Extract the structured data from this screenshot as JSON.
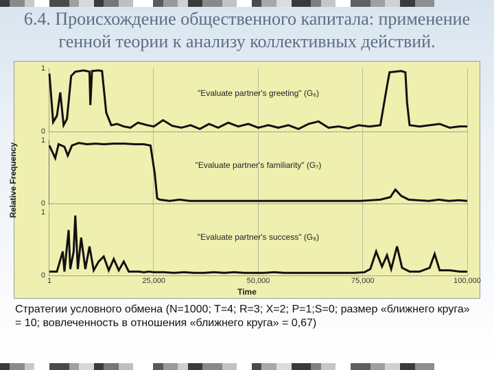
{
  "title": "6.4. Происхождение общественного капитала: применение генной теории к анализу коллективных действий.",
  "title_color": "#5b6e82",
  "stripes": {
    "colors": [
      "#3a3a3a",
      "#8a8a8a",
      "#c9c9c9",
      "#ffffff",
      "#4a4a4a",
      "#a0a0a0",
      "#d8d8d8",
      "#3a3a3a",
      "#777777",
      "#bfbfbf",
      "#ffffff",
      "#5a5a5a",
      "#9a9a9a",
      "#cfcfcf",
      "#3a3a3a",
      "#888888",
      "#c2c2c2",
      "#ffffff",
      "#4a4a4a",
      "#a8a8a8",
      "#dcdcdc",
      "#3a3a3a",
      "#7f7f7f",
      "#c7c7c7",
      "#ffffff",
      "#5f5f5f",
      "#9f9f9f",
      "#d1d1d1",
      "#3a3a3a",
      "#8d8d8d"
    ],
    "widths_pct": [
      2,
      3,
      2,
      3,
      4,
      2,
      3,
      2,
      3,
      3,
      4,
      2,
      3,
      2,
      3,
      4,
      3,
      3,
      2,
      3,
      3,
      4,
      2,
      3,
      3,
      4,
      3,
      3,
      3,
      4
    ]
  },
  "chart": {
    "background_color": "#efefb0",
    "ylabel": "Relative Frequency",
    "xlabel": "Time",
    "xlim": [
      1,
      100000
    ],
    "ylim": [
      0,
      1
    ],
    "yticks": [
      0,
      1
    ],
    "xticks": [
      1,
      25000,
      50000,
      75000,
      100000
    ],
    "xtick_labels": [
      "1",
      "25,000",
      "50,000",
      "75,000",
      "100,000"
    ],
    "line_color": "#111111",
    "line_width": 1.0,
    "panels": [
      {
        "label": "\"Evaluate partner's greeting\" (G₆)",
        "series": [
          [
            1,
            0.92
          ],
          [
            900,
            0.15
          ],
          [
            1800,
            0.25
          ],
          [
            2600,
            0.62
          ],
          [
            3400,
            0.1
          ],
          [
            4200,
            0.2
          ],
          [
            5200,
            0.88
          ],
          [
            6200,
            0.95
          ],
          [
            8200,
            0.97
          ],
          [
            9600,
            0.95
          ],
          [
            9800,
            0.42
          ],
          [
            10200,
            0.96
          ],
          [
            11800,
            0.97
          ],
          [
            12600,
            0.96
          ],
          [
            13600,
            0.3
          ],
          [
            14800,
            0.1
          ],
          [
            16200,
            0.12
          ],
          [
            17800,
            0.08
          ],
          [
            19400,
            0.06
          ],
          [
            21200,
            0.14
          ],
          [
            23400,
            0.1
          ],
          [
            25000,
            0.08
          ],
          [
            27200,
            0.18
          ],
          [
            29400,
            0.09
          ],
          [
            31600,
            0.06
          ],
          [
            33800,
            0.1
          ],
          [
            36000,
            0.04
          ],
          [
            38200,
            0.12
          ],
          [
            40400,
            0.06
          ],
          [
            42800,
            0.14
          ],
          [
            45200,
            0.08
          ],
          [
            47600,
            0.12
          ],
          [
            50000,
            0.06
          ],
          [
            52400,
            0.1
          ],
          [
            54800,
            0.06
          ],
          [
            57200,
            0.1
          ],
          [
            59600,
            0.04
          ],
          [
            62000,
            0.12
          ],
          [
            64400,
            0.16
          ],
          [
            66800,
            0.06
          ],
          [
            69200,
            0.08
          ],
          [
            71600,
            0.05
          ],
          [
            74000,
            0.1
          ],
          [
            76600,
            0.08
          ],
          [
            79200,
            0.1
          ],
          [
            80800,
            0.72
          ],
          [
            81400,
            0.94
          ],
          [
            84200,
            0.96
          ],
          [
            85200,
            0.94
          ],
          [
            85600,
            0.46
          ],
          [
            86200,
            0.1
          ],
          [
            88600,
            0.08
          ],
          [
            91000,
            0.1
          ],
          [
            93400,
            0.12
          ],
          [
            95800,
            0.06
          ],
          [
            98200,
            0.08
          ],
          [
            100000,
            0.08
          ]
        ]
      },
      {
        "label": "\"Evaluate partner's familiarity\" (G₇)",
        "series": [
          [
            1,
            0.92
          ],
          [
            1400,
            0.72
          ],
          [
            2200,
            0.94
          ],
          [
            3600,
            0.9
          ],
          [
            4400,
            0.76
          ],
          [
            5400,
            0.92
          ],
          [
            7000,
            0.96
          ],
          [
            9000,
            0.94
          ],
          [
            11000,
            0.95
          ],
          [
            13000,
            0.94
          ],
          [
            15400,
            0.95
          ],
          [
            18000,
            0.95
          ],
          [
            20400,
            0.94
          ],
          [
            22600,
            0.94
          ],
          [
            24200,
            0.92
          ],
          [
            25200,
            0.48
          ],
          [
            25800,
            0.08
          ],
          [
            26400,
            0.06
          ],
          [
            28800,
            0.04
          ],
          [
            31200,
            0.06
          ],
          [
            33600,
            0.04
          ],
          [
            36000,
            0.04
          ],
          [
            38400,
            0.04
          ],
          [
            40800,
            0.04
          ],
          [
            43200,
            0.04
          ],
          [
            45600,
            0.04
          ],
          [
            48000,
            0.04
          ],
          [
            50400,
            0.04
          ],
          [
            52800,
            0.04
          ],
          [
            55200,
            0.04
          ],
          [
            57600,
            0.04
          ],
          [
            60000,
            0.04
          ],
          [
            62400,
            0.04
          ],
          [
            64800,
            0.04
          ],
          [
            67200,
            0.04
          ],
          [
            69600,
            0.04
          ],
          [
            72000,
            0.04
          ],
          [
            74400,
            0.04
          ],
          [
            76800,
            0.05
          ],
          [
            79200,
            0.06
          ],
          [
            81600,
            0.1
          ],
          [
            82800,
            0.22
          ],
          [
            84200,
            0.12
          ],
          [
            86000,
            0.06
          ],
          [
            88400,
            0.05
          ],
          [
            90800,
            0.04
          ],
          [
            93200,
            0.06
          ],
          [
            95600,
            0.04
          ],
          [
            98000,
            0.05
          ],
          [
            100000,
            0.04
          ]
        ]
      },
      {
        "label": "\"Evaluate partner's success\" (G₈)",
        "series": [
          [
            1,
            0.06
          ],
          [
            1800,
            0.06
          ],
          [
            3200,
            0.38
          ],
          [
            3600,
            0.06
          ],
          [
            4600,
            0.72
          ],
          [
            5000,
            0.1
          ],
          [
            5800,
            0.38
          ],
          [
            6200,
            0.95
          ],
          [
            6800,
            0.1
          ],
          [
            7600,
            0.6
          ],
          [
            8600,
            0.1
          ],
          [
            9600,
            0.46
          ],
          [
            10600,
            0.08
          ],
          [
            11800,
            0.22
          ],
          [
            13000,
            0.3
          ],
          [
            14200,
            0.08
          ],
          [
            15400,
            0.26
          ],
          [
            16600,
            0.08
          ],
          [
            17800,
            0.22
          ],
          [
            19000,
            0.06
          ],
          [
            20200,
            0.06
          ],
          [
            21400,
            0.06
          ],
          [
            22600,
            0.05
          ],
          [
            23800,
            0.06
          ],
          [
            25000,
            0.05
          ],
          [
            27400,
            0.05
          ],
          [
            29800,
            0.04
          ],
          [
            32200,
            0.05
          ],
          [
            34600,
            0.04
          ],
          [
            37000,
            0.04
          ],
          [
            39400,
            0.05
          ],
          [
            41800,
            0.04
          ],
          [
            44200,
            0.05
          ],
          [
            46600,
            0.04
          ],
          [
            49000,
            0.04
          ],
          [
            51400,
            0.04
          ],
          [
            53800,
            0.05
          ],
          [
            56200,
            0.04
          ],
          [
            58600,
            0.04
          ],
          [
            61000,
            0.04
          ],
          [
            63400,
            0.04
          ],
          [
            65800,
            0.04
          ],
          [
            68200,
            0.04
          ],
          [
            70600,
            0.04
          ],
          [
            73000,
            0.04
          ],
          [
            75400,
            0.05
          ],
          [
            76800,
            0.1
          ],
          [
            78200,
            0.38
          ],
          [
            79600,
            0.14
          ],
          [
            80800,
            0.32
          ],
          [
            81800,
            0.1
          ],
          [
            83200,
            0.46
          ],
          [
            84400,
            0.12
          ],
          [
            86200,
            0.06
          ],
          [
            88600,
            0.06
          ],
          [
            91000,
            0.12
          ],
          [
            92200,
            0.34
          ],
          [
            93400,
            0.08
          ],
          [
            95800,
            0.08
          ],
          [
            98200,
            0.06
          ],
          [
            100000,
            0.06
          ]
        ]
      }
    ]
  },
  "caption": "Стратегии условного обмена (N=1000; T=4; R=3; X=2; P=1;S=0; размер «ближнего круга» = 10; вовлеченность в отношения «ближнего круга» = 0,67)"
}
